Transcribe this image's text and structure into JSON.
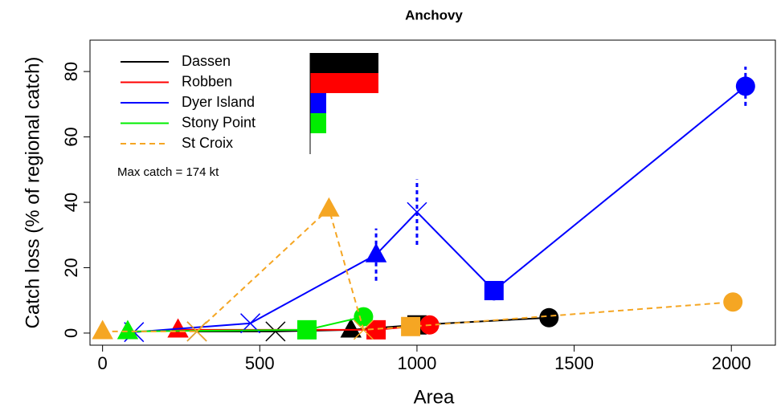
{
  "chart_data": {
    "type": "line",
    "title": "Anchovy",
    "x_label": "Area",
    "y_label": "Catch loss (% of regional catch)",
    "annotation": "Max catch = 174 kt",
    "xlim": [
      -40,
      2140
    ],
    "ylim": [
      -3.7,
      89.6
    ],
    "xticks": [
      0,
      500,
      1000,
      1500,
      2000
    ],
    "yticks": [
      0,
      20,
      40,
      60,
      80
    ],
    "series": [
      {
        "name": "Dassen",
        "color": "#000000",
        "dash": false,
        "catch_share": 85,
        "x": [
          300,
          550,
          790,
          1000,
          1420
        ],
        "values": [
          0.5,
          0.5,
          1,
          2.5,
          4.7
        ],
        "shapes": [
          "x",
          "x",
          "triangle",
          "square",
          "circle"
        ]
      },
      {
        "name": "Robben",
        "color": "#ff0000",
        "dash": false,
        "catch_share": 85,
        "x": [
          240,
          870,
          1040
        ],
        "values": [
          1,
          1,
          2.5
        ],
        "shapes": [
          "triangle",
          "square",
          "circle"
        ]
      },
      {
        "name": "Dyer Island",
        "color": "#0000ff",
        "dash": false,
        "catch_share": 20,
        "x": [
          100,
          470,
          870,
          1000,
          1245,
          2045
        ],
        "values": [
          0.3,
          3,
          24,
          37,
          13,
          75.5
        ],
        "errors": [
          0,
          0,
          8,
          10,
          3,
          6
        ],
        "shapes": [
          "x",
          "x",
          "triangle",
          "x",
          "square",
          "circle"
        ]
      },
      {
        "name": "Stony Point",
        "color": "#00ee00",
        "dash": false,
        "catch_share": 20,
        "x": [
          80,
          650,
          830
        ],
        "values": [
          0.5,
          1,
          5
        ],
        "shapes": [
          "triangle",
          "square",
          "circle"
        ]
      },
      {
        "name": "St Croix",
        "color": "#f5a623",
        "dash": true,
        "catch_share": 0,
        "x": [
          0,
          300,
          720,
          830,
          980,
          2005
        ],
        "values": [
          0.5,
          0.5,
          38,
          1,
          2,
          9.5
        ],
        "shapes": [
          "triangle",
          "x",
          "triangle",
          "x",
          "square",
          "circle"
        ]
      }
    ]
  }
}
